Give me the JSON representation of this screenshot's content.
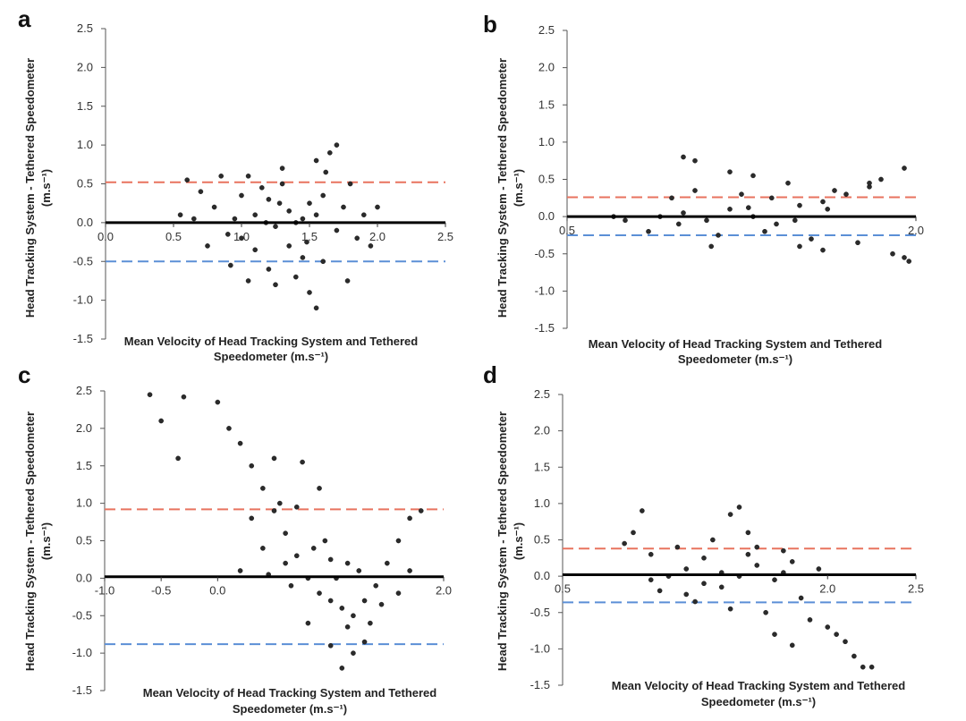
{
  "figure": {
    "colors": {
      "points": "#2b2b2b",
      "zero_line": "#000000",
      "upper_loa": "#e8735f",
      "lower_loa": "#5b8fd6"
    },
    "panels": [
      {
        "id": "a",
        "letter": "a",
        "ylabel_line1": "Head Tracking System - Tethered Speedometer",
        "ylabel_line2": "(m.s⁻¹)",
        "xlabel_line1": "Mean Velocity of Head Tracking System and Tethered",
        "xlabel_line2": "Speedometer (m.s⁻¹)"
      },
      {
        "id": "b",
        "letter": "b",
        "ylabel_line1": "Head Tracking System - Tethered Speedometer",
        "ylabel_line2": "(m.s⁻¹)",
        "xlabel_line1": "Mean Velocity of Head Tracking System and Tethered",
        "xlabel_line2": "Speedometer (m.s⁻¹)"
      },
      {
        "id": "c",
        "letter": "c",
        "ylabel_line1": "Head Tracking System - Tethered Speedometer",
        "ylabel_line2": "(m.s⁻¹)",
        "xlabel_line1": "Mean Velocity of Head Tracking System and Tethered",
        "xlabel_line2": "Speedometer (m.s⁻¹)"
      },
      {
        "id": "d",
        "letter": "d",
        "ylabel_line1": "Head Tracking System - Tethered Speedometer",
        "ylabel_line2": "(m.s⁻¹)",
        "xlabel_line1": "Mean Velocity of Head Tracking System and Tethered",
        "xlabel_line2": "Speedometer (m.s⁻¹)"
      }
    ]
  },
  "chart_data": [
    {
      "panel": "a",
      "type": "scatter",
      "title": "",
      "xlabel": "Mean Velocity of Head Tracking System and Tethered Speedometer (m.s⁻¹)",
      "ylabel": "Head Tracking System - Tethered Speedometer (m.s⁻¹)",
      "xlim": [
        0.0,
        2.5
      ],
      "ylim": [
        -1.5,
        2.5
      ],
      "xticks": [
        0.0,
        0.5,
        1.0,
        1.5,
        2.0,
        2.5
      ],
      "xtick_labels": [
        "0.0",
        "0.5",
        "1.0",
        "1.5",
        "2.0",
        "2.5"
      ],
      "yticks": [
        -1.5,
        -1.0,
        -0.5,
        0.0,
        0.5,
        1.0,
        1.5,
        2.0,
        2.5
      ],
      "ytick_labels": [
        "-1.5",
        "-1.0",
        "-0.5",
        "0.0",
        "0.5",
        "1.0",
        "1.5",
        "2.0",
        "2.5"
      ],
      "bias": 0.0,
      "upper_loa": 0.52,
      "lower_loa": -0.5,
      "grid": false,
      "legend": "none",
      "points": [
        [
          0.95,
          0.05
        ],
        [
          1.1,
          0.1
        ],
        [
          1.25,
          -0.05
        ],
        [
          1.4,
          0.0
        ],
        [
          1.55,
          0.1
        ],
        [
          1.0,
          -0.2
        ],
        [
          1.2,
          0.3
        ],
        [
          1.35,
          -0.3
        ],
        [
          1.5,
          0.25
        ],
        [
          1.7,
          -0.1
        ],
        [
          0.8,
          0.2
        ],
        [
          0.9,
          -0.15
        ],
        [
          1.15,
          0.45
        ],
        [
          1.3,
          0.5
        ],
        [
          1.45,
          -0.45
        ],
        [
          1.6,
          0.35
        ],
        [
          1.75,
          0.2
        ],
        [
          0.7,
          0.4
        ],
        [
          0.65,
          0.05
        ],
        [
          1.85,
          -0.2
        ],
        [
          1.05,
          0.6
        ],
        [
          1.2,
          -0.6
        ],
        [
          1.4,
          -0.7
        ],
        [
          1.6,
          -0.5
        ],
        [
          1.8,
          0.5
        ],
        [
          1.9,
          0.1
        ],
        [
          0.75,
          -0.3
        ],
        [
          0.6,
          0.55
        ],
        [
          1.3,
          0.7
        ],
        [
          1.55,
          0.8
        ],
        [
          1.65,
          0.9
        ],
        [
          1.7,
          1.0
        ],
        [
          1.5,
          -0.9
        ],
        [
          1.55,
          -1.1
        ],
        [
          1.25,
          -0.8
        ],
        [
          1.05,
          -0.75
        ],
        [
          1.0,
          0.35
        ],
        [
          1.35,
          0.15
        ],
        [
          1.45,
          0.05
        ],
        [
          1.1,
          -0.35
        ],
        [
          0.85,
          0.6
        ],
        [
          0.55,
          0.1
        ],
        [
          1.95,
          -0.3
        ],
        [
          2.0,
          0.2
        ],
        [
          1.78,
          -0.75
        ],
        [
          1.62,
          0.65
        ],
        [
          0.92,
          -0.55
        ],
        [
          1.28,
          0.25
        ],
        [
          1.48,
          -0.25
        ],
        [
          1.18,
          0.0
        ]
      ]
    },
    {
      "panel": "b",
      "type": "scatter",
      "title": "",
      "xlabel": "Mean Velocity of Head Tracking System and Tethered Speedometer (m.s⁻¹)",
      "ylabel": "Head Tracking System - Tethered Speedometer (m.s⁻¹)",
      "xlim": [
        0.5,
        2.0
      ],
      "ylim": [
        -1.5,
        2.5
      ],
      "xticks": [
        0.5,
        2.0
      ],
      "xtick_labels": [
        "0.5",
        "2.0"
      ],
      "yticks": [
        -1.5,
        -1.0,
        -0.5,
        0.0,
        0.5,
        1.0,
        1.5,
        2.0,
        2.5
      ],
      "ytick_labels": [
        "-1.5",
        "-1.0",
        "-0.5",
        "0.0",
        "0.5",
        "1.0",
        "1.5",
        "2.0",
        "2.5"
      ],
      "bias": 0.0,
      "upper_loa": 0.26,
      "lower_loa": -0.25,
      "grid": false,
      "legend": "none",
      "points": [
        [
          0.9,
          0.0
        ],
        [
          1.0,
          0.05
        ],
        [
          1.1,
          -0.05
        ],
        [
          1.2,
          0.1
        ],
        [
          1.3,
          0.0
        ],
        [
          1.4,
          -0.1
        ],
        [
          1.5,
          0.15
        ],
        [
          1.6,
          0.2
        ],
        [
          1.7,
          0.3
        ],
        [
          1.8,
          0.4
        ],
        [
          1.85,
          0.5
        ],
        [
          1.95,
          0.65
        ],
        [
          1.9,
          -0.5
        ],
        [
          1.95,
          -0.55
        ],
        [
          1.97,
          -0.6
        ],
        [
          0.85,
          -0.2
        ],
        [
          0.95,
          0.25
        ],
        [
          1.05,
          0.35
        ],
        [
          1.0,
          0.8
        ],
        [
          1.05,
          0.75
        ],
        [
          1.15,
          -0.25
        ],
        [
          1.25,
          0.3
        ],
        [
          1.35,
          -0.2
        ],
        [
          1.45,
          0.45
        ],
        [
          1.55,
          -0.3
        ],
        [
          1.65,
          0.35
        ],
        [
          1.75,
          -0.35
        ],
        [
          1.8,
          0.45
        ],
        [
          0.75,
          -0.05
        ],
        [
          0.7,
          0.0
        ],
        [
          1.2,
          0.6
        ],
        [
          1.3,
          0.55
        ],
        [
          1.5,
          -0.4
        ],
        [
          1.6,
          -0.45
        ],
        [
          1.12,
          -0.4
        ],
        [
          1.38,
          0.25
        ],
        [
          1.48,
          -0.05
        ],
        [
          0.98,
          -0.1
        ],
        [
          1.28,
          0.12
        ],
        [
          1.62,
          0.1
        ]
      ]
    },
    {
      "panel": "c",
      "type": "scatter",
      "title": "",
      "xlabel": "Mean Velocity of Head Tracking System and Tethered Speedometer (m.s⁻¹)",
      "ylabel": "Head Tracking System - Tethered Speedometer (m.s⁻¹)",
      "xlim": [
        -1.0,
        2.0
      ],
      "ylim": [
        -1.5,
        2.5
      ],
      "xticks": [
        -1.0,
        -0.5,
        0.0,
        2.0
      ],
      "xtick_labels": [
        "-1.0",
        "-0.5",
        "0.0",
        "2.0"
      ],
      "yticks": [
        -1.5,
        -1.0,
        -0.5,
        0.0,
        0.5,
        1.0,
        1.5,
        2.0,
        2.5
      ],
      "ytick_labels": [
        "-1.5",
        "-1.0",
        "-0.5",
        "0.0",
        "0.5",
        "1.0",
        "1.5",
        "2.0",
        "2.5"
      ],
      "bias": 0.02,
      "upper_loa": 0.92,
      "lower_loa": -0.88,
      "grid": false,
      "legend": "none",
      "points": [
        [
          -0.6,
          2.45
        ],
        [
          -0.5,
          2.1
        ],
        [
          -0.3,
          2.42
        ],
        [
          -0.35,
          1.6
        ],
        [
          0.0,
          2.35
        ],
        [
          0.1,
          2.0
        ],
        [
          0.2,
          1.8
        ],
        [
          0.3,
          1.5
        ],
        [
          0.4,
          1.2
        ],
        [
          0.5,
          0.9
        ],
        [
          0.6,
          0.6
        ],
        [
          0.7,
          0.3
        ],
        [
          0.8,
          0.0
        ],
        [
          0.9,
          -0.2
        ],
        [
          1.0,
          -0.3
        ],
        [
          1.1,
          -0.4
        ],
        [
          1.2,
          -0.5
        ],
        [
          1.3,
          -0.3
        ],
        [
          1.4,
          -0.1
        ],
        [
          1.5,
          0.2
        ],
        [
          1.6,
          0.5
        ],
        [
          1.7,
          0.8
        ],
        [
          1.8,
          0.9
        ],
        [
          0.5,
          1.6
        ],
        [
          0.75,
          1.55
        ],
        [
          0.9,
          1.2
        ],
        [
          0.4,
          0.4
        ],
        [
          0.6,
          0.2
        ],
        [
          0.8,
          -0.6
        ],
        [
          1.0,
          -0.9
        ],
        [
          1.1,
          -1.2
        ],
        [
          1.2,
          -1.0
        ],
        [
          0.95,
          0.5
        ],
        [
          1.15,
          0.2
        ],
        [
          1.35,
          -0.6
        ],
        [
          1.25,
          0.1
        ],
        [
          0.65,
          -0.1
        ],
        [
          0.85,
          0.4
        ],
        [
          1.05,
          0.0
        ],
        [
          1.45,
          -0.35
        ],
        [
          0.3,
          0.8
        ],
        [
          0.55,
          1.0
        ],
        [
          1.6,
          -0.2
        ],
        [
          1.7,
          0.1
        ],
        [
          0.2,
          0.1
        ],
        [
          1.3,
          -0.85
        ],
        [
          0.7,
          0.95
        ],
        [
          1.0,
          0.25
        ],
        [
          0.45,
          0.05
        ],
        [
          1.15,
          -0.65
        ]
      ]
    },
    {
      "panel": "d",
      "type": "scatter",
      "title": "",
      "xlabel": "Mean Velocity of Head Tracking System and Tethered Speedometer (m.s⁻¹)",
      "ylabel": "Head Tracking System - Tethered Speedometer (m.s⁻¹)",
      "xlim": [
        0.5,
        2.5
      ],
      "ylim": [
        -1.5,
        2.5
      ],
      "xticks": [
        0.5,
        2.0,
        2.5
      ],
      "xtick_labels": [
        "0.5",
        "2.0",
        "2.5"
      ],
      "yticks": [
        -1.5,
        -1.0,
        -0.5,
        0.0,
        0.5,
        1.0,
        1.5,
        2.0,
        2.5
      ],
      "ytick_labels": [
        "-1.5",
        "-1.0",
        "-0.5",
        "0.0",
        "0.5",
        "1.0",
        "1.5",
        "2.0",
        "2.5"
      ],
      "bias": 0.02,
      "upper_loa": 0.38,
      "lower_loa": -0.36,
      "grid": false,
      "legend": "none",
      "points": [
        [
          1.1,
          0.0
        ],
        [
          1.2,
          0.1
        ],
        [
          1.3,
          -0.1
        ],
        [
          1.4,
          0.05
        ],
        [
          1.5,
          0.0
        ],
        [
          1.6,
          0.15
        ],
        [
          1.7,
          -0.05
        ],
        [
          1.8,
          0.2
        ],
        [
          1.0,
          0.3
        ],
        [
          1.05,
          -0.2
        ],
        [
          1.15,
          0.4
        ],
        [
          1.25,
          -0.35
        ],
        [
          1.35,
          0.5
        ],
        [
          1.45,
          -0.45
        ],
        [
          1.55,
          0.6
        ],
        [
          1.65,
          -0.5
        ],
        [
          1.75,
          0.35
        ],
        [
          1.85,
          -0.3
        ],
        [
          0.9,
          0.6
        ],
        [
          0.95,
          0.9
        ],
        [
          1.5,
          0.95
        ],
        [
          1.45,
          0.85
        ],
        [
          1.9,
          -0.6
        ],
        [
          2.0,
          -0.7
        ],
        [
          2.05,
          -0.8
        ],
        [
          2.1,
          -0.9
        ],
        [
          2.15,
          -1.1
        ],
        [
          2.2,
          -1.25
        ],
        [
          2.25,
          -1.25
        ],
        [
          1.8,
          -0.95
        ],
        [
          1.7,
          -0.8
        ],
        [
          0.85,
          0.45
        ],
        [
          1.0,
          -0.05
        ],
        [
          1.95,
          0.1
        ],
        [
          1.6,
          0.4
        ],
        [
          1.3,
          0.25
        ],
        [
          1.2,
          -0.25
        ],
        [
          1.4,
          -0.15
        ],
        [
          1.55,
          0.3
        ],
        [
          1.75,
          0.05
        ]
      ]
    }
  ]
}
